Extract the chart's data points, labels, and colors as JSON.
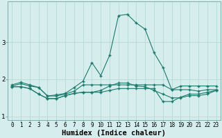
{
  "xlabel": "Humidex (Indice chaleur)",
  "background_color": "#d5eded",
  "grid_color": "#b8d8d8",
  "line_color": "#1a7a6a",
  "x_values": [
    0,
    1,
    2,
    3,
    4,
    5,
    6,
    7,
    8,
    9,
    10,
    11,
    12,
    13,
    14,
    15,
    16,
    17,
    18,
    19,
    20,
    21,
    22,
    23
  ],
  "series": [
    [
      1.85,
      1.92,
      1.85,
      1.78,
      1.55,
      1.58,
      1.62,
      1.78,
      1.95,
      2.45,
      2.1,
      2.65,
      3.72,
      3.75,
      3.52,
      3.35,
      2.72,
      2.32,
      1.72,
      1.82,
      1.82,
      1.82,
      1.82,
      1.82
    ],
    [
      1.82,
      1.88,
      1.82,
      1.78,
      1.55,
      1.55,
      1.6,
      1.68,
      1.85,
      1.85,
      1.85,
      1.85,
      1.85,
      1.85,
      1.85,
      1.85,
      1.85,
      1.85,
      1.72,
      1.72,
      1.72,
      1.68,
      1.72,
      1.72
    ],
    [
      1.8,
      1.8,
      1.75,
      1.6,
      1.48,
      1.48,
      1.56,
      1.62,
      1.65,
      1.65,
      1.65,
      1.7,
      1.75,
      1.75,
      1.75,
      1.75,
      1.75,
      1.4,
      1.4,
      1.52,
      1.6,
      1.6,
      1.65,
      1.7
    ],
    [
      1.8,
      1.8,
      1.75,
      1.6,
      1.48,
      1.48,
      1.56,
      1.62,
      1.65,
      1.65,
      1.7,
      1.82,
      1.9,
      1.9,
      1.82,
      1.8,
      1.7,
      1.6,
      1.5,
      1.5,
      1.56,
      1.56,
      1.6,
      1.7
    ]
  ],
  "ylim": [
    0.9,
    4.1
  ],
  "yticks": [
    1,
    2,
    3
  ],
  "xlim": [
    -0.5,
    23.5
  ],
  "xtick_fontsize": 5.5,
  "ytick_fontsize": 6.5,
  "xlabel_fontsize": 7.5
}
